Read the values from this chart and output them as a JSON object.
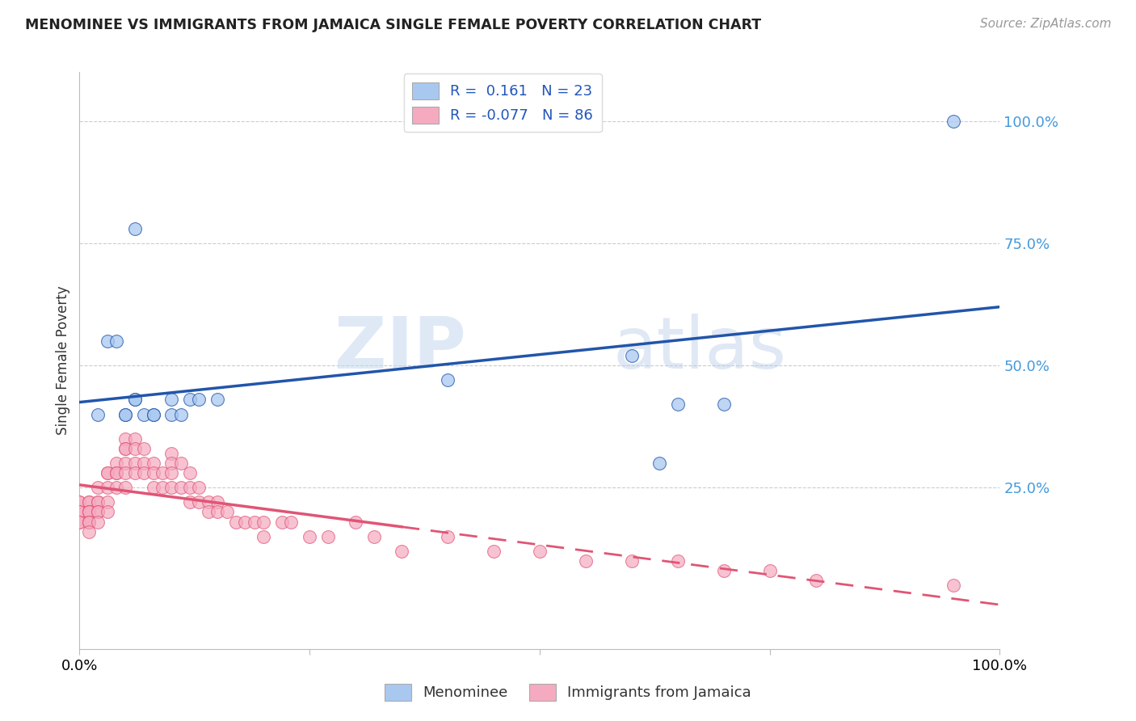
{
  "title": "MENOMINEE VS IMMIGRANTS FROM JAMAICA SINGLE FEMALE POVERTY CORRELATION CHART",
  "source": "Source: ZipAtlas.com",
  "ylabel": "Single Female Poverty",
  "color_blue": "#a8c8f0",
  "color_pink": "#f5aac0",
  "line_blue": "#2255aa",
  "line_pink": "#e05575",
  "watermark_zip": "ZIP",
  "watermark_atlas": "atlas",
  "menominee_x": [
    0.02,
    0.03,
    0.04,
    0.05,
    0.05,
    0.06,
    0.06,
    0.06,
    0.07,
    0.08,
    0.08,
    0.1,
    0.1,
    0.11,
    0.12,
    0.13,
    0.15,
    0.4,
    0.6,
    0.63,
    0.65,
    0.7,
    0.95
  ],
  "menominee_y": [
    0.4,
    0.55,
    0.55,
    0.4,
    0.4,
    0.43,
    0.43,
    0.78,
    0.4,
    0.4,
    0.4,
    0.4,
    0.43,
    0.4,
    0.43,
    0.43,
    0.43,
    0.47,
    0.52,
    0.3,
    0.42,
    0.42,
    1.0
  ],
  "jamaica_x": [
    0.0,
    0.0,
    0.0,
    0.0,
    0.0,
    0.0,
    0.01,
    0.01,
    0.01,
    0.01,
    0.01,
    0.01,
    0.01,
    0.01,
    0.01,
    0.02,
    0.02,
    0.02,
    0.02,
    0.02,
    0.02,
    0.03,
    0.03,
    0.03,
    0.03,
    0.03,
    0.04,
    0.04,
    0.04,
    0.04,
    0.05,
    0.05,
    0.05,
    0.05,
    0.05,
    0.05,
    0.06,
    0.06,
    0.06,
    0.06,
    0.07,
    0.07,
    0.07,
    0.08,
    0.08,
    0.08,
    0.09,
    0.09,
    0.1,
    0.1,
    0.1,
    0.1,
    0.11,
    0.11,
    0.12,
    0.12,
    0.12,
    0.13,
    0.13,
    0.14,
    0.14,
    0.15,
    0.15,
    0.16,
    0.17,
    0.18,
    0.19,
    0.2,
    0.2,
    0.22,
    0.23,
    0.25,
    0.27,
    0.3,
    0.32,
    0.35,
    0.4,
    0.45,
    0.5,
    0.55,
    0.6,
    0.65,
    0.7,
    0.75,
    0.8,
    0.95
  ],
  "jamaica_y": [
    0.22,
    0.22,
    0.2,
    0.2,
    0.18,
    0.18,
    0.22,
    0.22,
    0.2,
    0.2,
    0.2,
    0.18,
    0.18,
    0.18,
    0.16,
    0.25,
    0.22,
    0.22,
    0.2,
    0.2,
    0.18,
    0.28,
    0.28,
    0.25,
    0.22,
    0.2,
    0.3,
    0.28,
    0.28,
    0.25,
    0.35,
    0.33,
    0.33,
    0.3,
    0.28,
    0.25,
    0.35,
    0.33,
    0.3,
    0.28,
    0.33,
    0.3,
    0.28,
    0.3,
    0.28,
    0.25,
    0.28,
    0.25,
    0.32,
    0.3,
    0.28,
    0.25,
    0.3,
    0.25,
    0.28,
    0.25,
    0.22,
    0.25,
    0.22,
    0.22,
    0.2,
    0.22,
    0.2,
    0.2,
    0.18,
    0.18,
    0.18,
    0.18,
    0.15,
    0.18,
    0.18,
    0.15,
    0.15,
    0.18,
    0.15,
    0.12,
    0.15,
    0.12,
    0.12,
    0.1,
    0.1,
    0.1,
    0.08,
    0.08,
    0.06,
    0.05
  ],
  "xlim": [
    0.0,
    1.0
  ],
  "ylim": [
    -0.08,
    1.1
  ],
  "ytick_vals": [
    0.0,
    0.25,
    0.5,
    0.75,
    1.0
  ],
  "ytick_labels": [
    "",
    "25.0%",
    "50.0%",
    "75.0%",
    "100.0%"
  ]
}
